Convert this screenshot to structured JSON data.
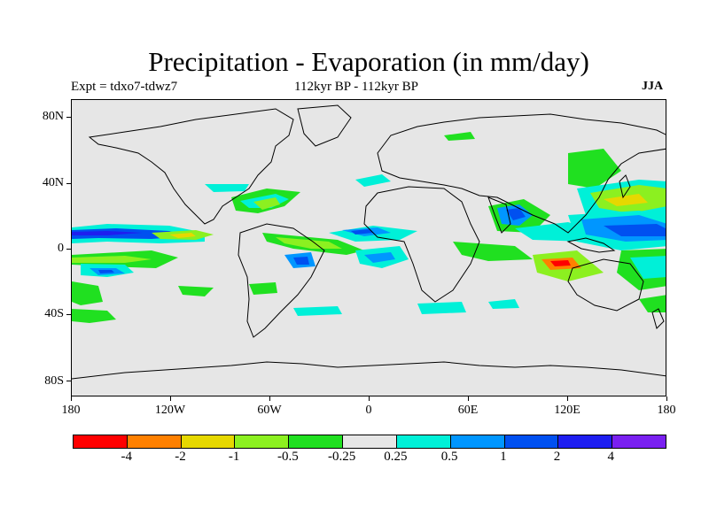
{
  "title": "Precipitation - Evaporation (in mm/day)",
  "subtitle_left": "Expt = tdxo7-tdwz7",
  "subtitle_center": "112kyr BP - 112kyr BP",
  "subtitle_right": "JJA",
  "lat_labels": [
    "80N",
    "40N",
    "0",
    "40S",
    "80S"
  ],
  "lon_labels": [
    "180",
    "120W",
    "60W",
    "0",
    "60E",
    "120E",
    "180"
  ],
  "colorbar": {
    "colors": [
      "#ff0000",
      "#ff8000",
      "#e6d800",
      "#8cf020",
      "#20e020",
      "#e6e6e6",
      "#00f0d8",
      "#0096ff",
      "#0050f0",
      "#1e1ef0",
      "#7a20f0"
    ],
    "labels": [
      "-4",
      "-2",
      "-1",
      "-0.5",
      "-0.25",
      "0.25",
      "0.5",
      "1",
      "2",
      "4"
    ]
  },
  "colors": {
    "background": "#e6e6e6",
    "coastline": "#000000"
  }
}
